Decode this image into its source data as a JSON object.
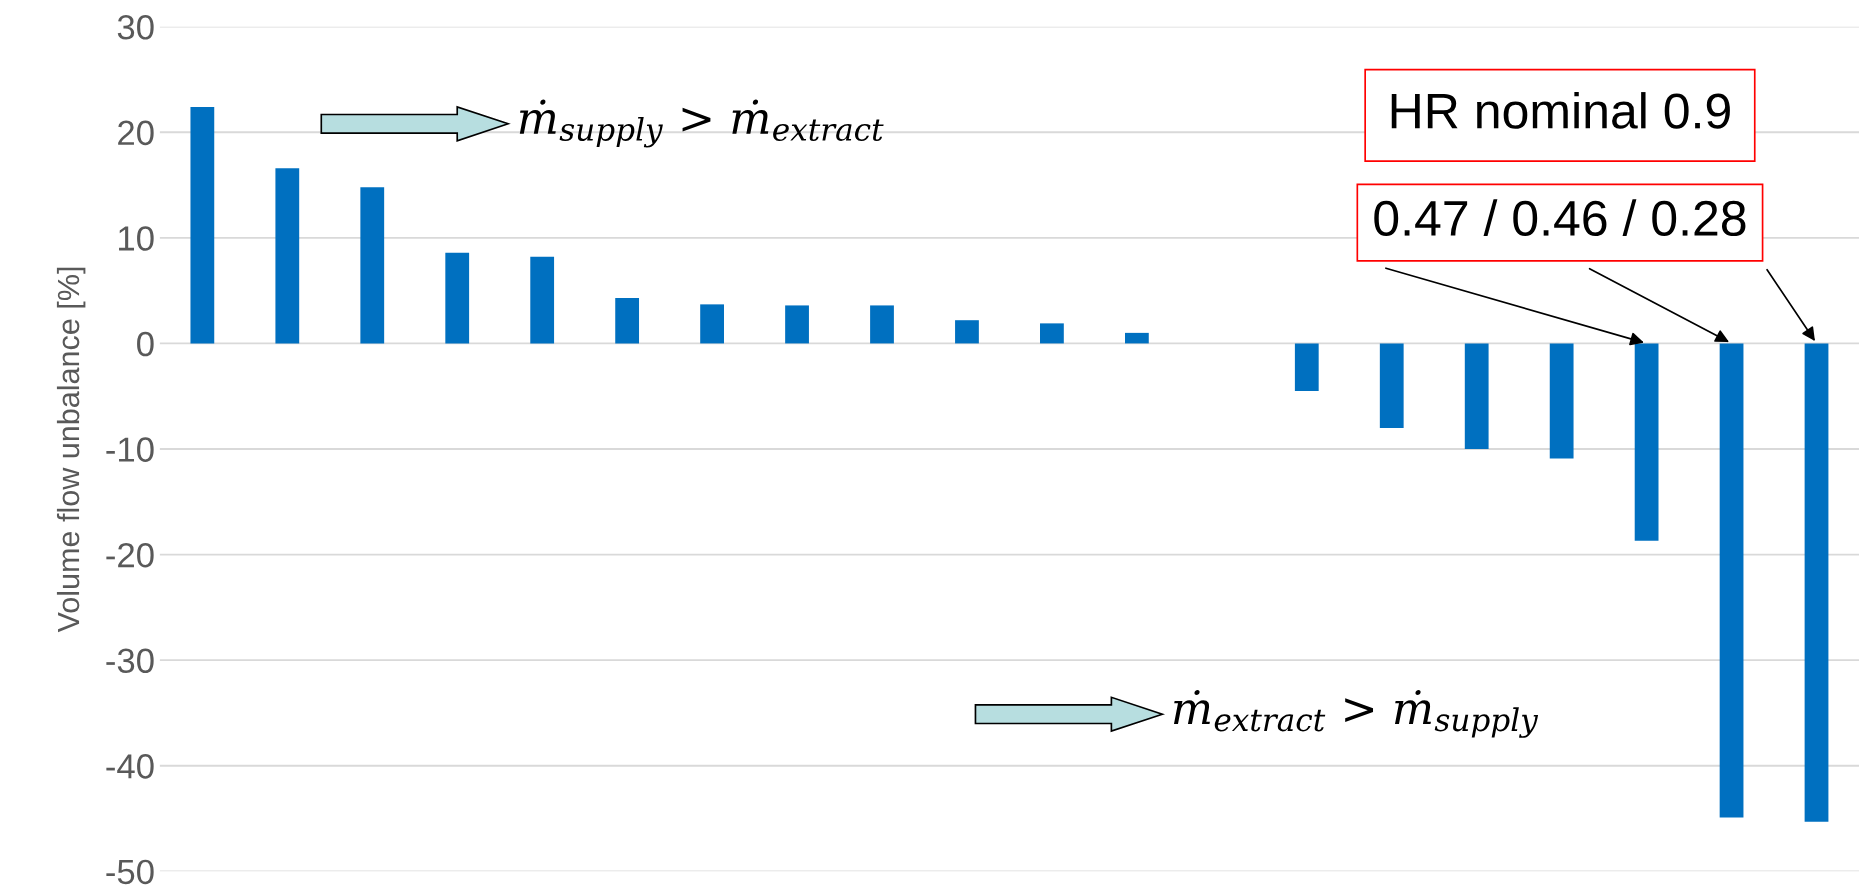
{
  "chart_data": {
    "type": "bar",
    "ylabel": "Volume flow unbalance [%]",
    "categories": [
      null,
      null,
      null,
      null,
      null,
      null,
      null,
      null,
      null,
      null,
      null,
      null,
      null,
      null,
      null,
      null,
      null,
      null,
      null,
      null
    ],
    "values": [
      22.4,
      16.6,
      14.8,
      8.6,
      8.2,
      4.3,
      3.7,
      3.6,
      3.6,
      2.2,
      1.9,
      1.0,
      0,
      -4.5,
      -8.0,
      -10.0,
      -10.9,
      -18.7,
      -44.9,
      -45.3
    ],
    "color": "#0070c0",
    "ylim": [
      -50,
      30
    ],
    "yticks": [
      -50,
      -40,
      -30,
      -20,
      -10,
      0,
      10,
      20,
      30
    ],
    "grid": "y",
    "tick_labels": "y",
    "annotations": [
      "ṁ$_{supply}$ > ṁ$_{extract}$",
      "ṁ$_{extract}$ > ṁ$_{supply}$",
      "HR nominal 0.9",
      "0.47 / 0.46 / 0.28"
    ]
  }
}
